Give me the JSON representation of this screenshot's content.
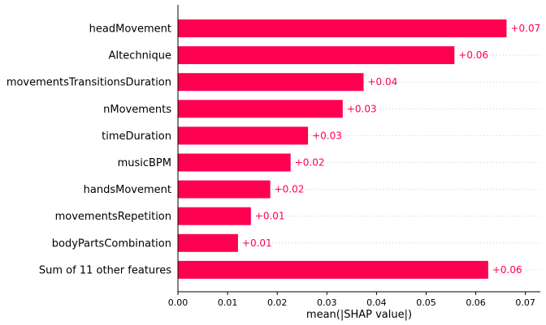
{
  "chart_data": {
    "type": "bar",
    "orientation": "horizontal",
    "categories": [
      "headMovement",
      "AItechnique",
      "movementsTransitionsDuration",
      "nMovements",
      "timeDuration",
      "musicBPM",
      "handsMovement",
      "movementsRepetition",
      "bodyPartsCombination",
      "Sum of 11 other features"
    ],
    "values": [
      0.0662,
      0.0557,
      0.0374,
      0.0332,
      0.0262,
      0.0227,
      0.0186,
      0.0147,
      0.0121,
      0.0625
    ],
    "value_labels": [
      "+0.07",
      "+0.06",
      "+0.04",
      "+0.03",
      "+0.03",
      "+0.02",
      "+0.02",
      "+0.01",
      "+0.01",
      "+0.06"
    ],
    "xlabel": "mean(|SHAP value|)",
    "ylabel": "",
    "title": "",
    "xlim": [
      0,
      0.073
    ],
    "xticks": [
      0.0,
      0.01,
      0.02,
      0.03,
      0.04,
      0.05,
      0.06,
      0.07
    ],
    "xtick_labels": [
      "0.00",
      "0.01",
      "0.02",
      "0.03",
      "0.04",
      "0.05",
      "0.06",
      "0.07"
    ],
    "grid": "dotted horizontal row lines",
    "colors": {
      "bar": "#ff0051",
      "label": "#ff0051",
      "axis": "#000000",
      "grid": "#cccccc"
    }
  }
}
